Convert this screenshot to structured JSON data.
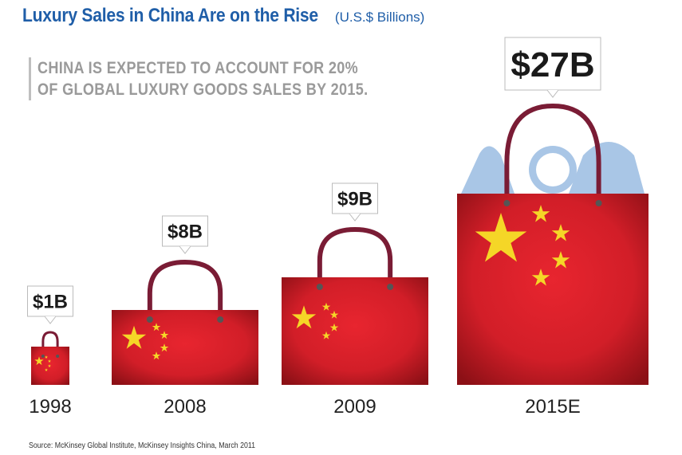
{
  "header": {
    "title": "Luxury Sales in China Are on the Rise",
    "unit": "(U.S.$ Billions)"
  },
  "callout": {
    "line1": "CHINA IS EXPECTED TO ACCOUNT FOR 20%",
    "line2": "OF GLOBAL LUXURY GOODS SALES BY 2015."
  },
  "source": "Source: McKinsey Global Institute, McKinsey Insights China, March 2011",
  "colors": {
    "bag": "#d8202a",
    "bag_dark": "#8c1016",
    "star": "#f5d627",
    "handle": "#7a1c35",
    "luxury_icons": "#a9c6e6"
  },
  "chart_data": {
    "type": "bar",
    "categories": [
      "1998",
      "2008",
      "2009",
      "2015E"
    ],
    "values": [
      1,
      8,
      9,
      27
    ],
    "value_labels": [
      "$1B",
      "$8B",
      "$9B",
      "$27B"
    ],
    "unit": "U.S.$ Billions",
    "title": "Luxury Sales in China Are on the Rise",
    "xlabel": "",
    "ylabel": "",
    "grid": false,
    "legend": "none"
  }
}
